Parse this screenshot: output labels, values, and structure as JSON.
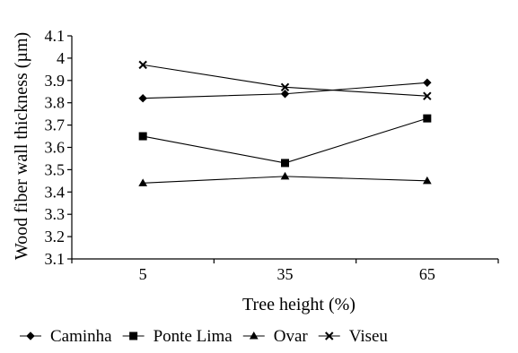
{
  "chart_data": {
    "type": "line",
    "title": "",
    "xlabel": "Tree height (%)",
    "ylabel": "Wood fiber wall thickness (µm)",
    "categories": [
      "5",
      "35",
      "65"
    ],
    "ylim": [
      3.1,
      4.1
    ],
    "yticks": [
      "3.1",
      "3.2",
      "3.3",
      "3.4",
      "3.5",
      "3.6",
      "3.7",
      "3.8",
      "3.9",
      "4",
      "4.1"
    ],
    "grid": false,
    "legend_position": "bottom",
    "series": [
      {
        "name": "Caminha",
        "marker": "diamond",
        "values": [
          3.82,
          3.84,
          3.89
        ]
      },
      {
        "name": "Ponte Lima",
        "marker": "square",
        "values": [
          3.65,
          3.53,
          3.73
        ]
      },
      {
        "name": "Ovar",
        "marker": "triangle",
        "values": [
          3.44,
          3.47,
          3.45
        ]
      },
      {
        "name": "Viseu",
        "marker": "x",
        "values": [
          3.97,
          3.87,
          3.83
        ]
      }
    ]
  }
}
